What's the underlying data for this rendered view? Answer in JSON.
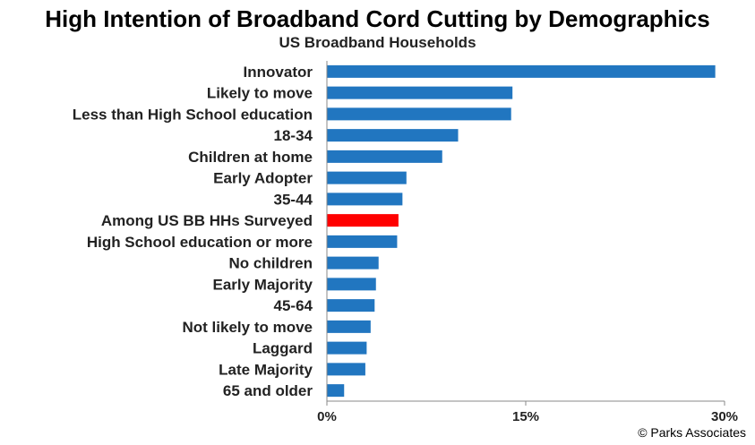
{
  "chart_data": {
    "type": "bar",
    "orientation": "horizontal",
    "title": "High Intention of Broadband Cord Cutting by Demographics",
    "subtitle": "US Broadband Households",
    "xlim": [
      0,
      30
    ],
    "xticks": [
      0,
      15,
      30
    ],
    "xtick_labels": [
      "0%",
      "15%",
      "30%"
    ],
    "grid": false,
    "legend": "none",
    "categories": [
      "Innovator",
      "Likely to move",
      "Less than High School education",
      "18-34",
      "Children at home",
      "Early Adopter",
      "35-44",
      "Among US BB HHs Surveyed",
      "High School education or more",
      "No children",
      "Early Majority",
      "45-64",
      "Not likely to move",
      "Laggard",
      "Late Majority",
      "65 and older"
    ],
    "values": [
      29.3,
      14.0,
      13.9,
      9.9,
      8.7,
      6.0,
      5.7,
      5.4,
      5.3,
      3.9,
      3.7,
      3.6,
      3.3,
      3.0,
      2.9,
      1.3
    ],
    "colors": [
      "#2176c0",
      "#2176c0",
      "#2176c0",
      "#2176c0",
      "#2176c0",
      "#2176c0",
      "#2176c0",
      "#ff0000",
      "#2176c0",
      "#2176c0",
      "#2176c0",
      "#2176c0",
      "#2176c0",
      "#2176c0",
      "#2176c0",
      "#2176c0"
    ]
  },
  "credit": "© Parks Associates"
}
